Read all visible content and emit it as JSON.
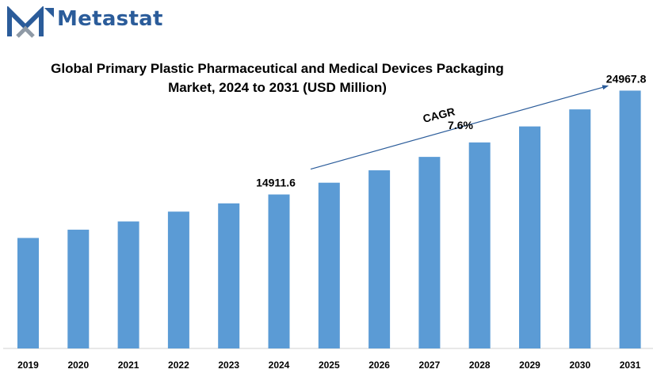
{
  "brand": {
    "name": "Metastat",
    "color": "#2b5c9a"
  },
  "chart_data": {
    "type": "bar",
    "title": [
      "Global Primary Plastic Pharmaceutical and Medical Devices Packaging",
      "Market, 2024 to 2031 (USD Million)"
    ],
    "categories": [
      "2019",
      "2020",
      "2021",
      "2022",
      "2023",
      "2024",
      "2025",
      "2026",
      "2027",
      "2028",
      "2029",
      "2030",
      "2031"
    ],
    "values": [
      10700,
      11500,
      12300,
      13250,
      14050,
      14911.6,
      16050,
      17250,
      18550,
      19950,
      21500,
      23150,
      24967.8
    ],
    "data_labels": {
      "2024": "14911.6",
      "2031": "24967.8"
    },
    "annotation": {
      "label": "CAGR",
      "value": "7.6%"
    },
    "ylim": [
      0,
      26000
    ],
    "bar_color": "#5b9bd5",
    "grid": false,
    "legend": "none"
  }
}
